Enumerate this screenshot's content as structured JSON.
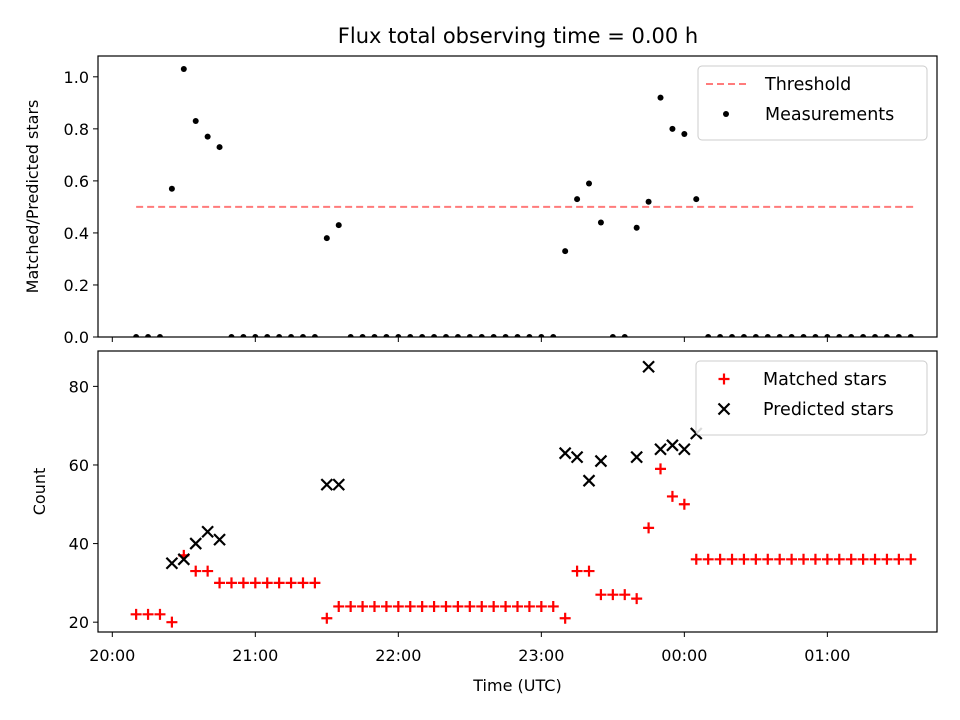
{
  "title": "Flux total observing time = 0.00 h",
  "chart_data": [
    {
      "type": "scatter",
      "ylabel": "Matched/Predicted stars",
      "ylim": [
        0,
        1.08
      ],
      "yticks": [
        "0.0",
        "0.2",
        "0.4",
        "0.6",
        "0.8",
        "1.0"
      ],
      "legend_position": "top-right",
      "threshold": {
        "name": "Threshold",
        "value": 0.5,
        "x_start": "20:10",
        "x_end": "01:37",
        "color": "#ff7b7b"
      },
      "series": [
        {
          "name": "Measurements",
          "color": "#000000",
          "points": [
            [
              "20:10",
              0
            ],
            [
              "20:15",
              0
            ],
            [
              "20:20",
              0
            ],
            [
              "20:25",
              0.57
            ],
            [
              "20:30",
              1.03
            ],
            [
              "20:35",
              0.83
            ],
            [
              "20:40",
              0.77
            ],
            [
              "20:45",
              0.73
            ],
            [
              "20:50",
              0
            ],
            [
              "20:55",
              0
            ],
            [
              "21:00",
              0
            ],
            [
              "21:05",
              0
            ],
            [
              "21:10",
              0
            ],
            [
              "21:15",
              0
            ],
            [
              "21:20",
              0
            ],
            [
              "21:25",
              0
            ],
            [
              "21:30",
              0.38
            ],
            [
              "21:35",
              0.43
            ],
            [
              "21:40",
              0
            ],
            [
              "21:45",
              0
            ],
            [
              "21:50",
              0
            ],
            [
              "21:55",
              0
            ],
            [
              "22:00",
              0
            ],
            [
              "22:05",
              0
            ],
            [
              "22:10",
              0
            ],
            [
              "22:15",
              0
            ],
            [
              "22:20",
              0
            ],
            [
              "22:25",
              0
            ],
            [
              "22:30",
              0
            ],
            [
              "22:35",
              0
            ],
            [
              "22:40",
              0
            ],
            [
              "22:45",
              0
            ],
            [
              "22:50",
              0
            ],
            [
              "22:55",
              0
            ],
            [
              "23:00",
              0
            ],
            [
              "23:05",
              0
            ],
            [
              "23:10",
              0.33
            ],
            [
              "23:15",
              0.53
            ],
            [
              "23:20",
              0.59
            ],
            [
              "23:25",
              0.44
            ],
            [
              "23:30",
              0
            ],
            [
              "23:35",
              0
            ],
            [
              "23:40",
              0.42
            ],
            [
              "23:45",
              0.52
            ],
            [
              "23:50",
              0.92
            ],
            [
              "23:55",
              0.8
            ],
            [
              "00:00",
              0.78
            ],
            [
              "00:05",
              0.53
            ],
            [
              "00:10",
              0
            ],
            [
              "00:15",
              0
            ],
            [
              "00:20",
              0
            ],
            [
              "00:25",
              0
            ],
            [
              "00:30",
              0
            ],
            [
              "00:35",
              0
            ],
            [
              "00:40",
              0
            ],
            [
              "00:45",
              0
            ],
            [
              "00:50",
              0
            ],
            [
              "00:55",
              0
            ],
            [
              "01:00",
              0
            ],
            [
              "01:05",
              0
            ],
            [
              "01:10",
              0
            ],
            [
              "01:15",
              0
            ],
            [
              "01:20",
              0
            ],
            [
              "01:25",
              0
            ],
            [
              "01:30",
              0
            ],
            [
              "01:35",
              0
            ]
          ]
        }
      ]
    },
    {
      "type": "scatter",
      "xlabel": "Time (UTC)",
      "ylabel": "Count",
      "ylim": [
        17.5,
        89
      ],
      "yticks": [
        "20",
        "40",
        "60",
        "80"
      ],
      "xticks": [
        "20:00",
        "21:00",
        "22:00",
        "23:00",
        "00:00",
        "01:00"
      ],
      "xlim": [
        "19:54",
        "01:46"
      ],
      "legend_position": "top-right",
      "series": [
        {
          "name": "Matched stars",
          "marker": "plus",
          "color": "#ff0000",
          "points": [
            [
              "20:10",
              22
            ],
            [
              "20:15",
              22
            ],
            [
              "20:20",
              22
            ],
            [
              "20:25",
              20
            ],
            [
              "20:30",
              37
            ],
            [
              "20:35",
              33
            ],
            [
              "20:40",
              33
            ],
            [
              "20:45",
              30
            ],
            [
              "20:50",
              30
            ],
            [
              "20:55",
              30
            ],
            [
              "21:00",
              30
            ],
            [
              "21:05",
              30
            ],
            [
              "21:10",
              30
            ],
            [
              "21:15",
              30
            ],
            [
              "21:20",
              30
            ],
            [
              "21:25",
              30
            ],
            [
              "21:30",
              21
            ],
            [
              "21:35",
              24
            ],
            [
              "21:40",
              24
            ],
            [
              "21:45",
              24
            ],
            [
              "21:50",
              24
            ],
            [
              "21:55",
              24
            ],
            [
              "22:00",
              24
            ],
            [
              "22:05",
              24
            ],
            [
              "22:10",
              24
            ],
            [
              "22:15",
              24
            ],
            [
              "22:20",
              24
            ],
            [
              "22:25",
              24
            ],
            [
              "22:30",
              24
            ],
            [
              "22:35",
              24
            ],
            [
              "22:40",
              24
            ],
            [
              "22:45",
              24
            ],
            [
              "22:50",
              24
            ],
            [
              "22:55",
              24
            ],
            [
              "23:00",
              24
            ],
            [
              "23:05",
              24
            ],
            [
              "23:10",
              21
            ],
            [
              "23:15",
              33
            ],
            [
              "23:20",
              33
            ],
            [
              "23:25",
              27
            ],
            [
              "23:30",
              27
            ],
            [
              "23:35",
              27
            ],
            [
              "23:40",
              26
            ],
            [
              "23:45",
              44
            ],
            [
              "23:50",
              59
            ],
            [
              "23:55",
              52
            ],
            [
              "00:00",
              50
            ],
            [
              "00:05",
              36
            ],
            [
              "00:10",
              36
            ],
            [
              "00:15",
              36
            ],
            [
              "00:20",
              36
            ],
            [
              "00:25",
              36
            ],
            [
              "00:30",
              36
            ],
            [
              "00:35",
              36
            ],
            [
              "00:40",
              36
            ],
            [
              "00:45",
              36
            ],
            [
              "00:50",
              36
            ],
            [
              "00:55",
              36
            ],
            [
              "01:00",
              36
            ],
            [
              "01:05",
              36
            ],
            [
              "01:10",
              36
            ],
            [
              "01:15",
              36
            ],
            [
              "01:20",
              36
            ],
            [
              "01:25",
              36
            ],
            [
              "01:30",
              36
            ],
            [
              "01:35",
              36
            ]
          ]
        },
        {
          "name": "Predicted stars",
          "marker": "x",
          "color": "#000000",
          "points": [
            [
              "20:25",
              35
            ],
            [
              "20:30",
              36
            ],
            [
              "20:35",
              40
            ],
            [
              "20:40",
              43
            ],
            [
              "20:45",
              41
            ],
            [
              "21:30",
              55
            ],
            [
              "21:35",
              55
            ],
            [
              "23:10",
              63
            ],
            [
              "23:15",
              62
            ],
            [
              "23:20",
              56
            ],
            [
              "23:25",
              61
            ],
            [
              "23:40",
              62
            ],
            [
              "23:45",
              85
            ],
            [
              "23:50",
              64
            ],
            [
              "23:55",
              65
            ],
            [
              "00:00",
              64
            ],
            [
              "00:05",
              68
            ]
          ]
        }
      ]
    }
  ]
}
